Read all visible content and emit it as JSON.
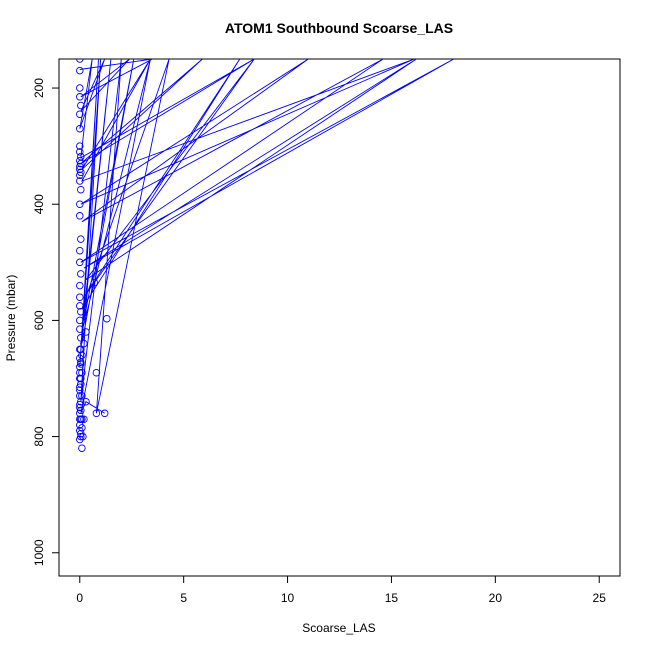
{
  "chart_data": {
    "type": "line",
    "title": "ATOM1 Southbound Scoarse_LAS",
    "xlabel": "Scoarse_LAS",
    "ylabel": "Pressure (mbar)",
    "xlim": [
      -1,
      26
    ],
    "ylim": [
      1040,
      150
    ],
    "y_reversed": true,
    "grid": false,
    "line_color": "#0000ff",
    "marker": "open-circle",
    "x_ticks": [
      0,
      5,
      10,
      15,
      20,
      25
    ],
    "y_ticks": [
      200,
      400,
      600,
      800,
      1000
    ],
    "series": [
      {
        "x": [
          0.0,
          3.5,
          0.05,
          2.4,
          0.05,
          1.2,
          0.0,
          0.6,
          0.05,
          8.4,
          0.05,
          5.9,
          0.1,
          3.4,
          0.1,
          16.1,
          0.05,
          11.0,
          0.1,
          14.6,
          0.05,
          18.0,
          0.2,
          16.2,
          0.3,
          8.4,
          0.2,
          7.7,
          0.1,
          4.3,
          0.8,
          2.0,
          0.05,
          1.0,
          0.0,
          0.9,
          0.1,
          2.6,
          0.2,
          1.5,
          0.1,
          3.4,
          0.05,
          0.3,
          1.2
        ],
        "y": [
          168,
          150,
          215,
          150,
          240,
          150,
          270,
          150,
          320,
          150,
          330,
          150,
          340,
          150,
          360,
          150,
          400,
          150,
          430,
          150,
          500,
          150,
          510,
          150,
          530,
          150,
          560,
          150,
          580,
          150,
          760,
          150,
          740,
          150,
          680,
          150,
          640,
          150,
          600,
          150,
          620,
          150,
          760,
          740,
          760
        ]
      }
    ],
    "points": {
      "x": [
        0.0,
        0.0,
        0.0,
        0.0,
        0.05,
        0.0,
        0.0,
        0.0,
        0.0,
        0.05,
        0.0,
        0.05,
        0.0,
        0.0,
        0.05,
        0.0,
        0.0,
        0.05,
        0.0,
        0.0,
        0.05,
        0.0,
        0.0,
        0.05,
        0.0,
        0.0,
        0.0,
        0.05,
        0.0,
        0.0,
        0.05,
        0.0,
        0.0,
        0.05,
        0.0,
        0.0,
        0.05,
        0.0,
        0.0,
        0.05,
        0.0,
        0.0,
        0.05,
        0.0,
        0.0,
        0.05,
        0.0,
        0.1,
        0.0,
        0.05,
        0.0,
        0.1,
        0.0,
        0.05,
        0.1,
        0.0,
        0.05,
        0.1,
        0.2,
        0.3,
        0.3,
        0.2,
        0.7,
        0.8,
        0.8,
        1.2,
        1.3,
        0.15,
        0.1,
        0.05,
        0.1,
        0.05
      ],
      "y": [
        150,
        170,
        200,
        215,
        230,
        245,
        270,
        300,
        310,
        318,
        325,
        330,
        335,
        340,
        345,
        350,
        360,
        375,
        400,
        420,
        460,
        480,
        500,
        520,
        540,
        560,
        575,
        585,
        600,
        615,
        630,
        650,
        665,
        675,
        690,
        700,
        710,
        720,
        730,
        740,
        750,
        760,
        770,
        780,
        790,
        800,
        805,
        785,
        770,
        755,
        745,
        730,
        715,
        700,
        690,
        680,
        672,
        660,
        640,
        620,
        740,
        770,
        535,
        690,
        760,
        760,
        597,
        800,
        820,
        795,
        770,
        650
      ]
    }
  }
}
